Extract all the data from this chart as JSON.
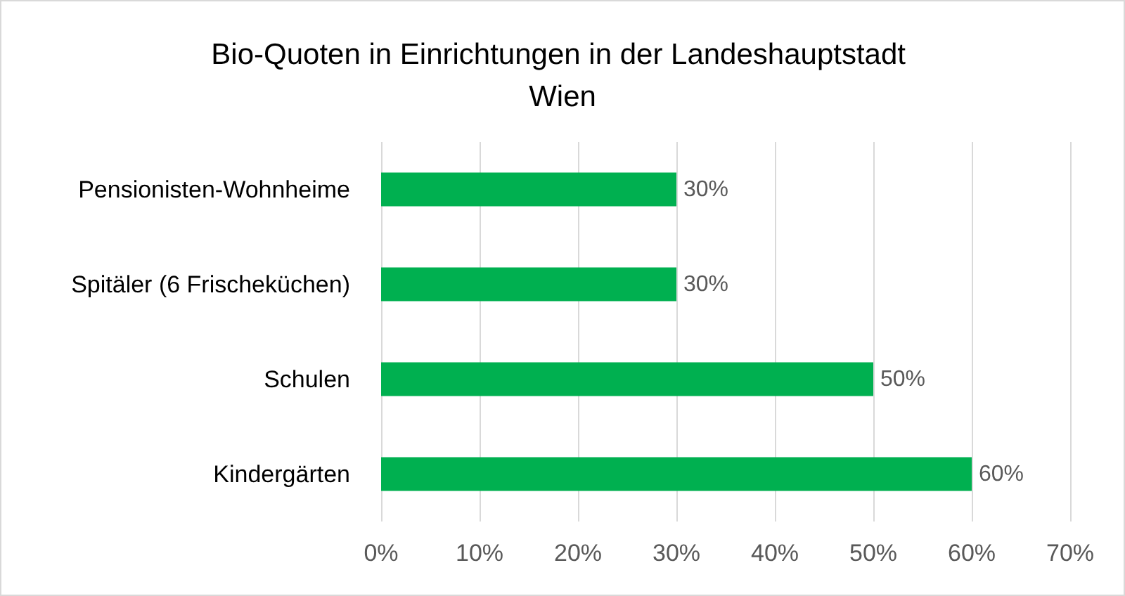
{
  "chart_data": {
    "type": "bar",
    "title": "Bio-Quoten in Einrichtungen in der Landeshauptstadt Wien",
    "orientation": "horizontal",
    "categories": [
      "Pensionisten-Wohnheime",
      "Spitäler (6 Frischeküchen)",
      "Schulen",
      "Kindergärten"
    ],
    "values": [
      30,
      30,
      50,
      60
    ],
    "color": "#00b050",
    "value_labels": [
      "30%",
      "30%",
      "50%",
      "60%"
    ],
    "xlim": [
      0,
      70
    ],
    "xticks": [
      {
        "value": 0,
        "label": "0%"
      },
      {
        "value": 10,
        "label": "10%"
      },
      {
        "value": 20,
        "label": "20%"
      },
      {
        "value": 30,
        "label": "30%"
      },
      {
        "value": 40,
        "label": "40%"
      },
      {
        "value": 50,
        "label": "50%"
      },
      {
        "value": 60,
        "label": "60%"
      },
      {
        "value": 70,
        "label": "70%"
      }
    ],
    "grid": "x"
  }
}
